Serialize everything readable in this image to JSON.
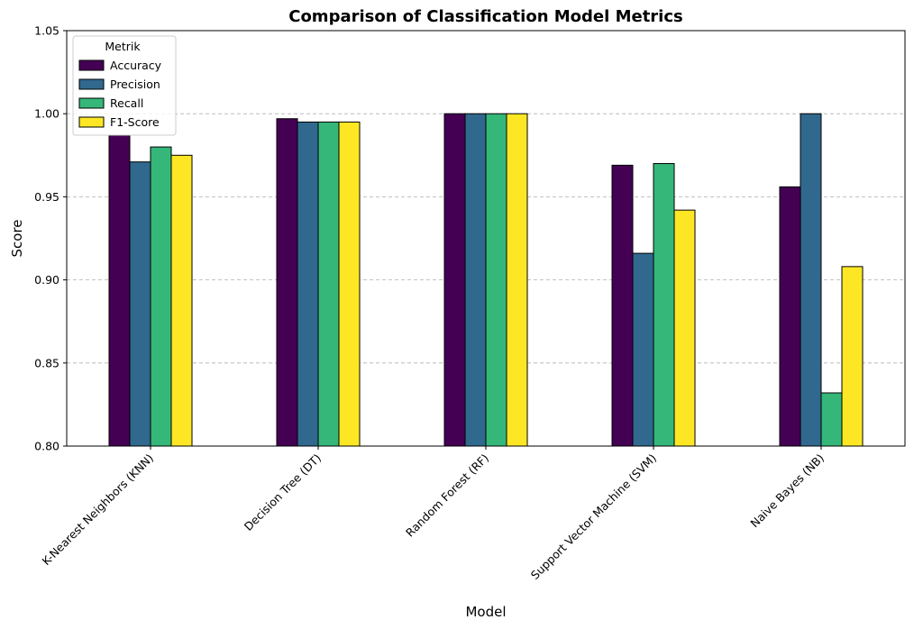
{
  "chart_data": {
    "type": "bar",
    "title": "Comparison of Classification Model Metrics",
    "xlabel": "Model",
    "ylabel": "Score",
    "ylim": [
      0.8,
      1.05
    ],
    "yticks": [
      "0.80",
      "0.85",
      "0.90",
      "0.95",
      "1.00",
      "1.05"
    ],
    "ytick_values": [
      0.8,
      0.85,
      0.9,
      0.95,
      1.0,
      1.05
    ],
    "grid": "y-dashed",
    "legend_title": "Metrik",
    "legend_position": "top-left",
    "categories": [
      "K-Nearest Neighbors (KNN)",
      "Decision Tree (DT)",
      "Random Forest (RF)",
      "Support Vector Machine (SVM)",
      "Naive Bayes (NB)"
    ],
    "series": [
      {
        "name": "Accuracy",
        "color": "#440154",
        "values": [
          0.987,
          0.997,
          1.0,
          0.969,
          0.956
        ]
      },
      {
        "name": "Precision",
        "color": "#31688e",
        "values": [
          0.971,
          0.995,
          1.0,
          0.916,
          1.0
        ]
      },
      {
        "name": "Recall",
        "color": "#35b779",
        "values": [
          0.98,
          0.995,
          1.0,
          0.97,
          0.832
        ]
      },
      {
        "name": "F1-Score",
        "color": "#fde725",
        "values": [
          0.975,
          0.995,
          1.0,
          0.942,
          0.908
        ]
      }
    ]
  }
}
